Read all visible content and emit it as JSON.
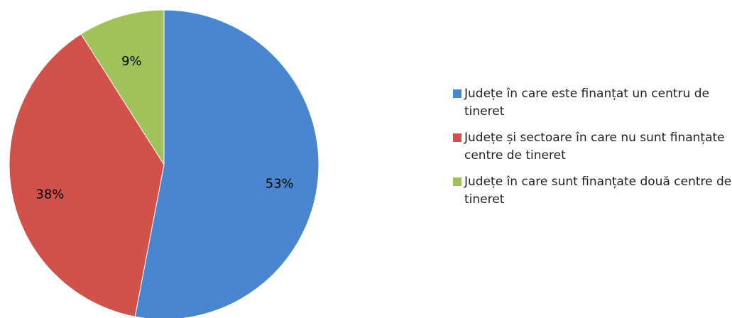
{
  "chart_data": {
    "type": "pie",
    "categories": [
      "Județe în care este finanțat un centru de tineret",
      "Județe și sectoare în care nu sunt finanțate centre de tineret",
      "Județe în care sunt finanțate două centre de tineret"
    ],
    "values": [
      53,
      38,
      9
    ],
    "value_labels": [
      "53%",
      "38%",
      "9%"
    ],
    "colors": [
      "#4a86cf",
      "#d1514b",
      "#9fc25a"
    ],
    "legend": "right"
  }
}
